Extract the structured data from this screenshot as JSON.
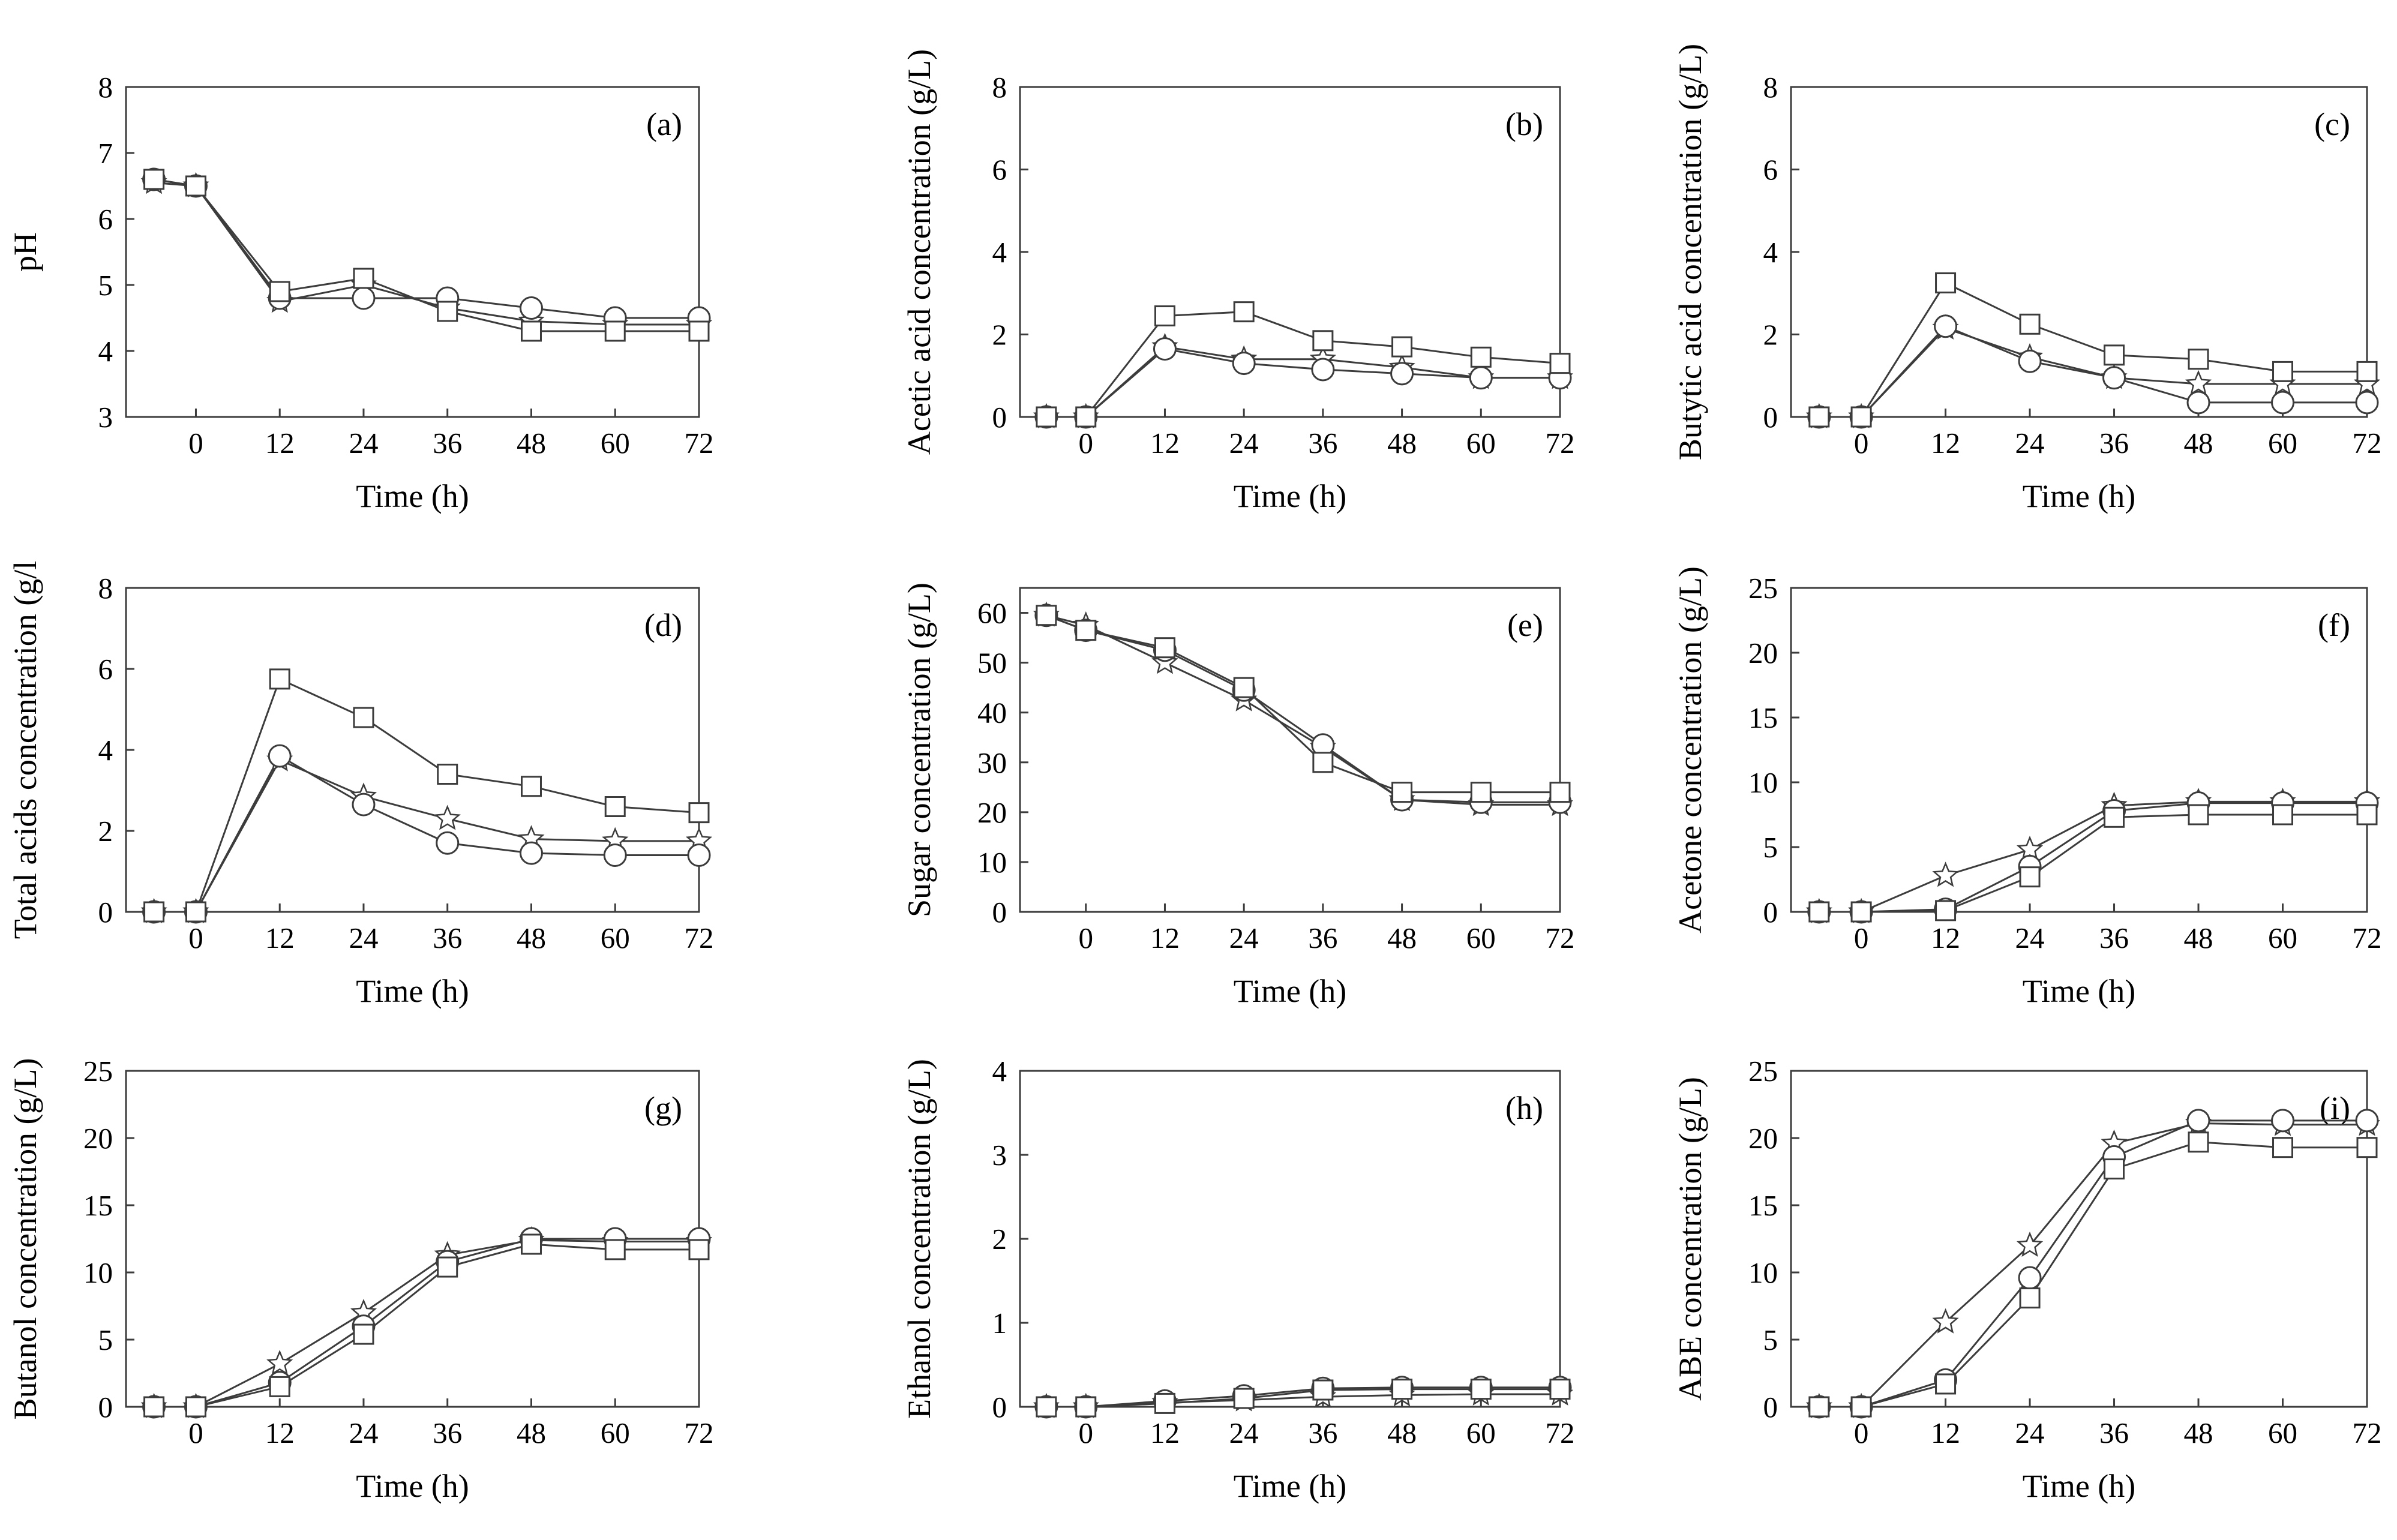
{
  "chart_data": [
    {
      "type": "line",
      "panel_label": "(a)",
      "title": "",
      "xlabel": "Time (h)",
      "ylabel": "pH",
      "xlim": [
        -10,
        72
      ],
      "ylim": [
        3,
        8
      ],
      "xticks": [
        0,
        12,
        24,
        36,
        48,
        60,
        72
      ],
      "yticks": [
        3,
        4,
        5,
        6,
        7,
        8
      ],
      "x": [
        -6,
        0,
        12,
        24,
        36,
        48,
        60,
        72
      ],
      "series": [
        {
          "marker": "star",
          "values": [
            6.55,
            6.5,
            4.75,
            5.0,
            4.65,
            4.45,
            4.4,
            4.4
          ]
        },
        {
          "marker": "circle",
          "values": [
            6.6,
            6.5,
            4.8,
            4.8,
            4.8,
            4.65,
            4.5,
            4.5
          ]
        },
        {
          "marker": "square",
          "values": [
            6.6,
            6.5,
            4.9,
            5.1,
            4.6,
            4.3,
            4.3,
            4.3
          ]
        }
      ]
    },
    {
      "type": "line",
      "panel_label": "(b)",
      "title": "",
      "xlabel": "Time (h)",
      "ylabel": "Acetic acid concentration (g/L)",
      "xlim": [
        -10,
        72
      ],
      "ylim": [
        0,
        8
      ],
      "xticks": [
        0,
        12,
        24,
        36,
        48,
        60,
        72
      ],
      "yticks": [
        0,
        2,
        4,
        6,
        8
      ],
      "x": [
        -6,
        0,
        12,
        24,
        36,
        48,
        60,
        72
      ],
      "series": [
        {
          "marker": "star",
          "values": [
            0,
            0,
            1.7,
            1.4,
            1.4,
            1.2,
            0.95,
            0.95
          ]
        },
        {
          "marker": "circle",
          "values": [
            0,
            0,
            1.65,
            1.3,
            1.15,
            1.05,
            0.95,
            0.95
          ]
        },
        {
          "marker": "square",
          "values": [
            0,
            0,
            2.45,
            2.55,
            1.85,
            1.7,
            1.45,
            1.3
          ]
        }
      ]
    },
    {
      "type": "line",
      "panel_label": "(c)",
      "title": "",
      "xlabel": "Time (h)",
      "ylabel": "Butytic acid concentration (g/L)",
      "xlim": [
        -10,
        72
      ],
      "ylim": [
        0,
        8
      ],
      "xticks": [
        0,
        12,
        24,
        36,
        48,
        60,
        72
      ],
      "yticks": [
        0,
        2,
        4,
        6,
        8
      ],
      "x": [
        -6,
        0,
        12,
        24,
        36,
        48,
        60,
        72
      ],
      "series": [
        {
          "marker": "star",
          "values": [
            0,
            0,
            2.15,
            1.45,
            0.95,
            0.8,
            0.8,
            0.8
          ]
        },
        {
          "marker": "circle",
          "values": [
            0,
            0,
            2.2,
            1.35,
            0.95,
            0.35,
            0.35,
            0.35
          ]
        },
        {
          "marker": "square",
          "values": [
            0,
            0,
            3.25,
            2.25,
            1.5,
            1.4,
            1.1,
            1.1
          ]
        }
      ]
    },
    {
      "type": "line",
      "panel_label": "(d)",
      "title": "",
      "xlabel": "Time (h)",
      "ylabel": "Total acids concentration (g/l",
      "xlim": [
        -10,
        72
      ],
      "ylim": [
        0,
        8
      ],
      "xticks": [
        0,
        12,
        24,
        36,
        48,
        60,
        72
      ],
      "yticks": [
        0,
        2,
        4,
        6,
        8
      ],
      "x": [
        -6,
        0,
        12,
        24,
        36,
        48,
        60,
        72
      ],
      "series": [
        {
          "marker": "star",
          "values": [
            0,
            0,
            3.75,
            2.85,
            2.3,
            1.8,
            1.75,
            1.75
          ]
        },
        {
          "marker": "circle",
          "values": [
            0,
            0,
            3.85,
            2.65,
            1.7,
            1.45,
            1.4,
            1.4
          ]
        },
        {
          "marker": "square",
          "values": [
            0,
            0,
            5.75,
            4.8,
            3.4,
            3.1,
            2.6,
            2.45
          ]
        }
      ]
    },
    {
      "type": "line",
      "panel_label": "(e)",
      "title": "",
      "xlabel": "Time (h)",
      "ylabel": "Sugar concentration (g/L)",
      "xlim": [
        -10,
        72
      ],
      "ylim": [
        0,
        65
      ],
      "xticks": [
        0,
        12,
        24,
        36,
        48,
        60,
        72
      ],
      "yticks": [
        0,
        10,
        20,
        30,
        40,
        50,
        60
      ],
      "x": [
        -6,
        0,
        12,
        24,
        36,
        48,
        60,
        72
      ],
      "series": [
        {
          "marker": "star",
          "values": [
            59.5,
            57.5,
            50,
            42.5,
            33,
            22.5,
            21.5,
            21.5
          ]
        },
        {
          "marker": "circle",
          "values": [
            59.5,
            56.5,
            52.5,
            44.5,
            33.5,
            22.5,
            22,
            22
          ]
        },
        {
          "marker": "square",
          "values": [
            59.5,
            56.5,
            53,
            45,
            30,
            24,
            24,
            24
          ]
        }
      ]
    },
    {
      "type": "line",
      "panel_label": "(f)",
      "title": "",
      "xlabel": "Time (h)",
      "ylabel": "Acetone concentration (g/L)",
      "xlim": [
        -10,
        72
      ],
      "ylim": [
        0,
        25
      ],
      "xticks": [
        0,
        12,
        24,
        36,
        48,
        60,
        72
      ],
      "yticks": [
        0,
        5,
        10,
        15,
        20,
        25
      ],
      "x": [
        -6,
        0,
        12,
        24,
        36,
        48,
        60,
        72
      ],
      "series": [
        {
          "marker": "star",
          "values": [
            0,
            0,
            2.8,
            4.8,
            8.2,
            8.5,
            8.5,
            8.5
          ]
        },
        {
          "marker": "circle",
          "values": [
            0,
            0,
            0.2,
            3.5,
            7.8,
            8.4,
            8.4,
            8.4
          ]
        },
        {
          "marker": "square",
          "values": [
            0,
            0,
            0.1,
            2.7,
            7.3,
            7.5,
            7.5,
            7.5
          ]
        }
      ]
    },
    {
      "type": "line",
      "panel_label": "(g)",
      "title": "",
      "xlabel": "Time (h)",
      "ylabel": "Butanol concentration (g/L)",
      "xlim": [
        -10,
        72
      ],
      "ylim": [
        0,
        25
      ],
      "xticks": [
        0,
        12,
        24,
        36,
        48,
        60,
        72
      ],
      "yticks": [
        0,
        5,
        10,
        15,
        20,
        25
      ],
      "x": [
        -6,
        0,
        12,
        24,
        36,
        48,
        60,
        72
      ],
      "series": [
        {
          "marker": "star",
          "values": [
            0,
            0,
            3.2,
            7.0,
            11.3,
            12.4,
            12.3,
            12.3
          ]
        },
        {
          "marker": "circle",
          "values": [
            0,
            0,
            1.8,
            6.0,
            10.8,
            12.5,
            12.5,
            12.5
          ]
        },
        {
          "marker": "square",
          "values": [
            0,
            0,
            1.5,
            5.4,
            10.4,
            12.1,
            11.7,
            11.7
          ]
        }
      ]
    },
    {
      "type": "line",
      "panel_label": "(h)",
      "title": "",
      "xlabel": "Time (h)",
      "ylabel": "Ethanol concentration (g/L)",
      "xlim": [
        -10,
        72
      ],
      "ylim": [
        0,
        4
      ],
      "xticks": [
        0,
        12,
        24,
        36,
        48,
        60,
        72
      ],
      "yticks": [
        0,
        1,
        2,
        3,
        4
      ],
      "x": [
        -6,
        0,
        12,
        24,
        36,
        48,
        60,
        72
      ],
      "series": [
        {
          "marker": "star",
          "values": [
            0,
            0,
            0.05,
            0.08,
            0.12,
            0.14,
            0.15,
            0.15
          ]
        },
        {
          "marker": "circle",
          "values": [
            0,
            0,
            0.07,
            0.13,
            0.22,
            0.23,
            0.23,
            0.23
          ]
        },
        {
          "marker": "square",
          "values": [
            0,
            0,
            0.04,
            0.1,
            0.2,
            0.21,
            0.21,
            0.21
          ]
        }
      ]
    },
    {
      "type": "line",
      "panel_label": "(i)",
      "title": "",
      "xlabel": "Time (h)",
      "ylabel": "ABE concentration (g/L)",
      "xlim": [
        -10,
        72
      ],
      "ylim": [
        0,
        25
      ],
      "xticks": [
        0,
        12,
        24,
        36,
        48,
        60,
        72
      ],
      "yticks": [
        0,
        5,
        10,
        15,
        20,
        25
      ],
      "x": [
        -6,
        0,
        12,
        24,
        36,
        48,
        60,
        72
      ],
      "series": [
        {
          "marker": "star",
          "values": [
            0,
            0,
            6.3,
            12.0,
            19.6,
            21.1,
            21.0,
            21.0
          ]
        },
        {
          "marker": "circle",
          "values": [
            0,
            0,
            2.0,
            9.6,
            18.6,
            21.3,
            21.3,
            21.3
          ]
        },
        {
          "marker": "square",
          "values": [
            0,
            0,
            1.7,
            8.1,
            17.7,
            19.7,
            19.3,
            19.3
          ]
        }
      ]
    }
  ]
}
